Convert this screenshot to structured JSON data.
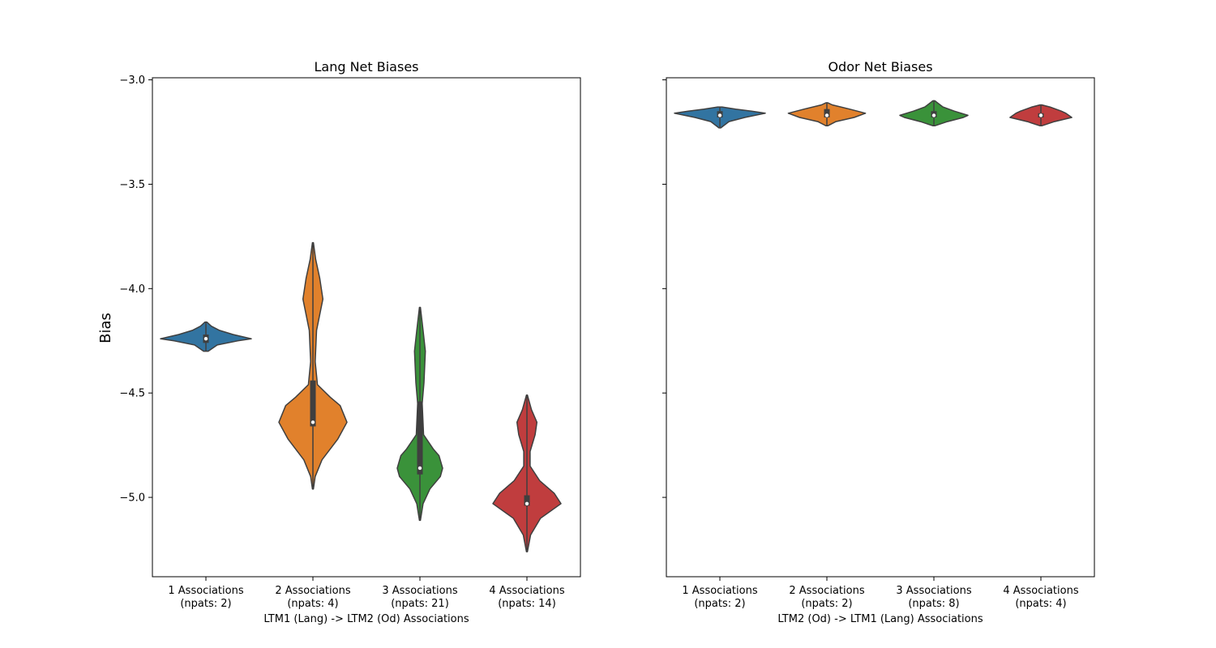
{
  "chart_data": [
    {
      "type": "violin",
      "title": "Lang Net Biases",
      "ylabel": "Bias",
      "xlabel": "LTM1 (Lang) -> LTM2 (Od) Associations",
      "ylim": [
        -5.38,
        -2.99
      ],
      "yticks": [
        -3.0,
        -3.5,
        -4.0,
        -4.5,
        -5.0
      ],
      "ytick_labels": [
        "−3.0",
        "−3.5",
        "−4.0",
        "−4.5",
        "−5.0"
      ],
      "grid": false,
      "categories": [
        {
          "label": "1 Associations\n(npats: 2)",
          "color": "#3274a1",
          "min": -4.3,
          "max": -4.16,
          "q1": -4.26,
          "median": -4.24,
          "q3": -4.22,
          "density": [
            [
              -4.3,
              0.05
            ],
            [
              -4.27,
              0.25
            ],
            [
              -4.25,
              0.7
            ],
            [
              -4.24,
              1.0
            ],
            [
              -4.22,
              0.6
            ],
            [
              -4.2,
              0.3
            ],
            [
              -4.18,
              0.12
            ],
            [
              -4.16,
              0.02
            ]
          ]
        },
        {
          "label": "2 Associations\n(npats: 4)",
          "color": "#e1812c",
          "min": -4.96,
          "max": -3.78,
          "q1": -4.66,
          "median": -4.64,
          "q3": -4.44,
          "density": [
            [
              -4.96,
              0.01
            ],
            [
              -4.9,
              0.05
            ],
            [
              -4.82,
              0.2
            ],
            [
              -4.72,
              0.55
            ],
            [
              -4.64,
              0.75
            ],
            [
              -4.56,
              0.6
            ],
            [
              -4.52,
              0.38
            ],
            [
              -4.46,
              0.1
            ],
            [
              -4.35,
              0.05
            ],
            [
              -4.2,
              0.08
            ],
            [
              -4.05,
              0.22
            ],
            [
              -3.95,
              0.15
            ],
            [
              -3.86,
              0.06
            ],
            [
              -3.78,
              0.01
            ]
          ]
        },
        {
          "label": "3 Associations\n(npats: 21)",
          "color": "#3a923a",
          "min": -5.11,
          "max": -4.09,
          "q1": -4.89,
          "median": -4.86,
          "q3": -4.54,
          "density": [
            [
              -5.11,
              0.01
            ],
            [
              -5.03,
              0.07
            ],
            [
              -4.96,
              0.22
            ],
            [
              -4.9,
              0.45
            ],
            [
              -4.86,
              0.5
            ],
            [
              -4.8,
              0.42
            ],
            [
              -4.77,
              0.3
            ],
            [
              -4.7,
              0.08
            ],
            [
              -4.55,
              0.05
            ],
            [
              -4.45,
              0.09
            ],
            [
              -4.3,
              0.12
            ],
            [
              -4.2,
              0.07
            ],
            [
              -4.09,
              0.01
            ]
          ]
        },
        {
          "label": "4 Associations\n(npats: 14)",
          "color": "#c03d3e",
          "min": -5.26,
          "max": -4.51,
          "q1": -5.04,
          "median": -5.03,
          "q3": -4.99,
          "density": [
            [
              -5.26,
              0.01
            ],
            [
              -5.18,
              0.08
            ],
            [
              -5.1,
              0.3
            ],
            [
              -5.03,
              0.75
            ],
            [
              -4.98,
              0.6
            ],
            [
              -4.92,
              0.28
            ],
            [
              -4.85,
              0.07
            ],
            [
              -4.78,
              0.07
            ],
            [
              -4.7,
              0.18
            ],
            [
              -4.64,
              0.22
            ],
            [
              -4.58,
              0.1
            ],
            [
              -4.51,
              0.01
            ]
          ]
        }
      ]
    },
    {
      "type": "violin",
      "title": "Odor Net Biases",
      "ylabel": "",
      "xlabel": "LTM2 (Od) -> LTM1 (Lang) Associations",
      "ylim": [
        -5.38,
        -2.99
      ],
      "yticks": [
        -3.0,
        -3.5,
        -4.0,
        -4.5,
        -5.0
      ],
      "ytick_labels": [
        "",
        "",
        "",
        "",
        ""
      ],
      "grid": false,
      "categories": [
        {
          "label": "1 Associations\n(npats: 2)",
          "color": "#3274a1",
          "min": -3.23,
          "max": -3.13,
          "q1": -3.18,
          "median": -3.17,
          "q3": -3.15,
          "density": [
            [
              -3.23,
              0.02
            ],
            [
              -3.2,
              0.2
            ],
            [
              -3.18,
              0.55
            ],
            [
              -3.16,
              1.0
            ],
            [
              -3.15,
              0.7
            ],
            [
              -3.14,
              0.35
            ],
            [
              -3.13,
              0.05
            ]
          ]
        },
        {
          "label": "2 Associations\n(npats: 2)",
          "color": "#e1812c",
          "min": -3.22,
          "max": -3.11,
          "q1": -3.18,
          "median": -3.17,
          "q3": -3.14,
          "density": [
            [
              -3.22,
              0.02
            ],
            [
              -3.2,
              0.2
            ],
            [
              -3.18,
              0.6
            ],
            [
              -3.16,
              0.85
            ],
            [
              -3.14,
              0.5
            ],
            [
              -3.12,
              0.12
            ],
            [
              -3.11,
              0.02
            ]
          ]
        },
        {
          "label": "3 Associations\n(npats: 8)",
          "color": "#3a923a",
          "min": -3.22,
          "max": -3.1,
          "q1": -3.18,
          "median": -3.17,
          "q3": -3.15,
          "density": [
            [
              -3.22,
              0.02
            ],
            [
              -3.2,
              0.3
            ],
            [
              -3.18,
              0.65
            ],
            [
              -3.17,
              0.75
            ],
            [
              -3.15,
              0.45
            ],
            [
              -3.13,
              0.2
            ],
            [
              -3.1,
              0.02
            ]
          ]
        },
        {
          "label": "4 Associations\n(npats: 4)",
          "color": "#c03d3e",
          "min": -3.22,
          "max": -3.12,
          "q1": -3.18,
          "median": -3.17,
          "q3": -3.16,
          "density": [
            [
              -3.22,
              0.02
            ],
            [
              -3.2,
              0.3
            ],
            [
              -3.18,
              0.68
            ],
            [
              -3.16,
              0.55
            ],
            [
              -3.15,
              0.45
            ],
            [
              -3.13,
              0.2
            ],
            [
              -3.12,
              0.02
            ]
          ]
        }
      ]
    }
  ]
}
